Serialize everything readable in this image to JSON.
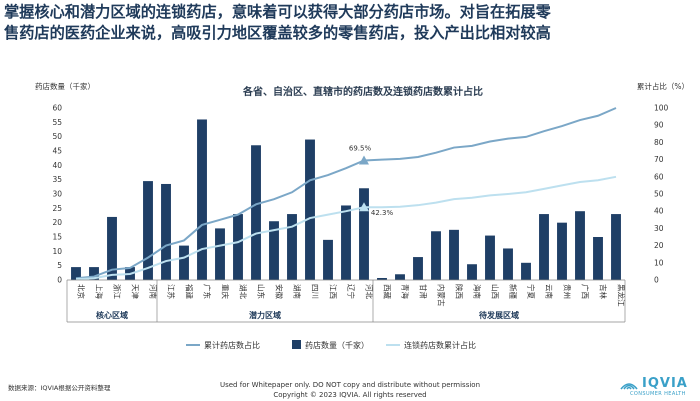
{
  "headline": {
    "line1": "掌握核心和潜力区域的连锁药店，意味着可以获得大部分药店市场。对旨在拓展零",
    "line2": "售药店的医药企业来说，高吸引力地区覆盖较多的零售药店，投入产出比相对较高"
  },
  "chart_data": {
    "type": "bar",
    "title": "各省、自治区、直辖市的药店数及连锁药店数累计占比",
    "ylabel_left": "药店数量（千家）",
    "ylabel_right": "累计占比（%）",
    "ylim_left": [
      0,
      60
    ],
    "ylim_right": [
      0,
      100
    ],
    "yticks_left": [
      0,
      5,
      10,
      15,
      20,
      25,
      30,
      35,
      40,
      45,
      50,
      55,
      60
    ],
    "yticks_right": [
      0,
      10,
      20,
      30,
      40,
      50,
      60,
      70,
      80,
      90,
      100
    ],
    "categories": [
      "北京",
      "上海",
      "浙江",
      "天津",
      "河南",
      "江苏",
      "福建",
      "广东",
      "重庆",
      "湖北",
      "山东",
      "安徽",
      "湖南",
      "四川",
      "江西",
      "辽宁",
      "河北",
      "西藏",
      "青海",
      "甘肃",
      "内蒙古",
      "陕西",
      "海南",
      "山西",
      "新疆",
      "宁夏",
      "云南",
      "贵州",
      "广西",
      "吉林",
      "黑龙江"
    ],
    "groups": [
      {
        "name": "核心区域",
        "start": 0,
        "end": 4
      },
      {
        "name": "潜力区域",
        "start": 5,
        "end": 16
      },
      {
        "name": "待发展区域",
        "start": 17,
        "end": 30
      }
    ],
    "series": [
      {
        "name": "药店数量（千家）",
        "kind": "bar",
        "axis": "left",
        "color": "#1f3f66",
        "values": [
          4.5,
          4.5,
          22,
          4.5,
          34.5,
          33.5,
          12,
          56,
          18,
          23,
          47,
          20.5,
          23,
          49,
          14,
          26,
          32,
          0.7,
          2,
          8,
          17,
          17.5,
          5.5,
          15.5,
          11,
          6,
          23,
          20,
          24,
          15,
          23
        ]
      },
      {
        "name": "累计药店数占比",
        "kind": "line",
        "axis": "right",
        "color": "#7ba7c7",
        "values": [
          1,
          2,
          6,
          7,
          13,
          20,
          23,
          32,
          35,
          38,
          44,
          47,
          51,
          58,
          61,
          65,
          69.5,
          70,
          70.4,
          71.5,
          74,
          77,
          78,
          80.5,
          82.2,
          83.2,
          86.5,
          89.5,
          93,
          95.5,
          100
        ]
      },
      {
        "name": "连锁药店数累计占比",
        "kind": "line",
        "axis": "right",
        "color": "#bde0ef",
        "values": [
          0.5,
          1,
          3,
          3.5,
          7,
          11,
          13,
          18,
          20,
          22,
          27,
          29,
          31,
          36,
          38,
          40,
          42.3,
          42.3,
          42.6,
          43.5,
          45,
          47,
          47.8,
          49.2,
          50,
          51,
          53,
          55,
          57,
          58,
          60
        ]
      }
    ],
    "annotations": [
      {
        "series": 1,
        "index": 16,
        "label": "69.5%"
      },
      {
        "series": 2,
        "index": 16,
        "label": "42.3%"
      }
    ],
    "legend": {
      "position": "bottom",
      "items": [
        "累计药店数占比",
        "药店数量（千家）",
        "连锁药店数累计占比"
      ]
    }
  },
  "footer": {
    "source": "数据来源：IQVIA根据公开资料整理",
    "disclaimer": "Used for Whitepaper only. DO NOT copy and distribute without permission",
    "copyright": "Copyright © 2023 IQVIA. All rights reserved"
  },
  "logo": {
    "name": "IQVIA",
    "tagline": "CONSUMER HEALTH"
  },
  "colors": {
    "headline": "#1f3a5a",
    "bar": "#1f3f66",
    "line1": "#7ba7c7",
    "line2": "#bde0ef",
    "accent": "#3aa0c8"
  }
}
